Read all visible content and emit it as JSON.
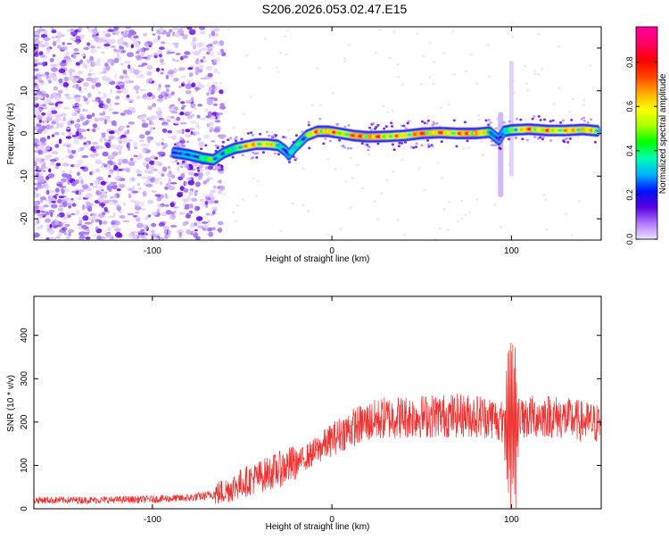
{
  "title": "S206.2026.053.02.47.E15",
  "colors": {
    "frame": "#000000",
    "snr_line": "#ee3333",
    "colormap": [
      "#f2e8ff",
      "#b27cff",
      "#5a00e0",
      "#0010ff",
      "#00b0ff",
      "#00ffb0",
      "#00ff00",
      "#aaff00",
      "#ffff00",
      "#ffaa00",
      "#ff4400",
      "#ff0000",
      "#ff0066",
      "#ff0099"
    ]
  },
  "chart_data": [
    {
      "type": "heatmap",
      "name": "spectrogram",
      "xlabel": "Height of straight line (km)",
      "ylabel": "Frequency (Hz)",
      "xlim": [
        -166,
        150
      ],
      "ylim": [
        -25,
        25
      ],
      "x_ticks": [
        -100,
        0,
        100
      ],
      "x_tick_labels": [
        "-100",
        "0",
        "100"
      ],
      "y_ticks": [
        -20,
        -10,
        0,
        10,
        20
      ],
      "y_tick_labels": [
        "-20",
        "-10",
        "0",
        "10",
        "20"
      ],
      "colorbar": {
        "label": "Normalized spectral amplitude",
        "range": [
          0.0,
          0.96
        ],
        "ticks": [
          0.0,
          0.2,
          0.4,
          0.6,
          0.8
        ],
        "tick_labels": [
          "0.0",
          "0.2",
          "0.4",
          "0.6",
          "0.8"
        ]
      },
      "ridge": {
        "x": [
          -88,
          -80,
          -72,
          -66,
          -60,
          -54,
          -48,
          -42,
          -36,
          -30,
          -26,
          -24,
          -20,
          -14,
          -8,
          -2,
          5,
          12,
          20,
          30,
          40,
          50,
          60,
          70,
          80,
          88,
          93,
          96,
          100,
          110,
          120,
          130,
          140,
          148
        ],
        "y": [
          -4.5,
          -5.0,
          -5.8,
          -6.2,
          -4.5,
          -3.5,
          -3.0,
          -2.5,
          -2.5,
          -2.8,
          -4.0,
          -5.0,
          -3.0,
          -0.5,
          0.5,
          0.5,
          0.0,
          -0.5,
          -0.8,
          -0.7,
          -0.5,
          0.0,
          0.2,
          0.0,
          0.0,
          0.3,
          -1.5,
          0.5,
          0.8,
          1.0,
          0.7,
          0.7,
          0.9,
          0.6
        ],
        "amplitude": [
          0.25,
          0.3,
          0.45,
          0.55,
          0.4,
          0.5,
          0.75,
          0.8,
          0.75,
          0.55,
          0.35,
          0.3,
          0.45,
          0.55,
          0.85,
          0.9,
          0.7,
          0.85,
          0.92,
          0.8,
          0.75,
          0.9,
          0.85,
          0.8,
          0.95,
          0.5,
          0.25,
          0.3,
          0.6,
          0.85,
          0.8,
          0.75,
          0.85,
          0.6
        ]
      },
      "spike": {
        "x": 94,
        "y_range": [
          -15,
          5
        ]
      },
      "faint_streak": {
        "x": 100,
        "y_range": [
          -10,
          17
        ]
      },
      "noise_region_x": [
        -166,
        -70
      ]
    },
    {
      "type": "line",
      "name": "snr",
      "xlabel": "Height of straight line (km)",
      "ylabel": "SNR (10 * v/v)",
      "xlim": [
        -166,
        150
      ],
      "ylim": [
        0,
        490
      ],
      "x_ticks": [
        -100,
        0,
        100
      ],
      "x_tick_labels": [
        "-100",
        "0",
        "100"
      ],
      "y_ticks": [
        0,
        100,
        200,
        300,
        400
      ],
      "y_tick_labels": [
        "0",
        "100",
        "200",
        "300",
        "400"
      ],
      "envelope": {
        "x": [
          -166,
          -130,
          -100,
          -80,
          -70,
          -60,
          -50,
          -40,
          -30,
          -20,
          -10,
          0,
          10,
          20,
          30,
          40,
          60,
          80,
          90,
          95,
          100,
          105,
          110,
          120,
          135,
          150
        ],
        "y": [
          20,
          20,
          22,
          25,
          30,
          40,
          60,
          75,
          90,
          105,
          130,
          160,
          185,
          200,
          210,
          212,
          215,
          215,
          210,
          200,
          200,
          205,
          212,
          215,
          205,
          195
        ]
      },
      "burst": {
        "x_range": [
          88,
          108
        ],
        "amplitude": 180,
        "center": 100
      }
    }
  ]
}
